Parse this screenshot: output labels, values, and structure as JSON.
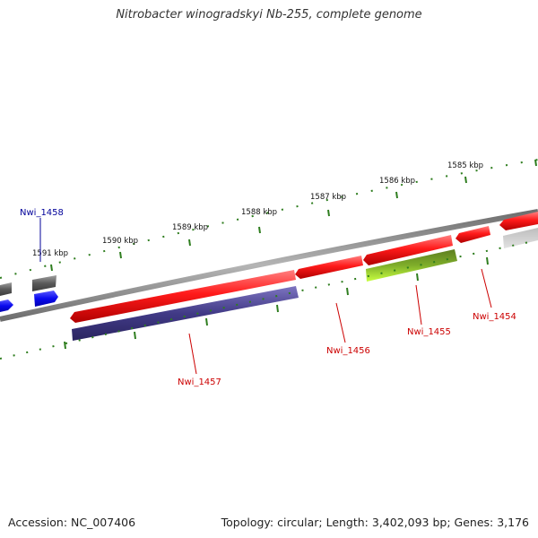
{
  "title": "Nitrobacter winogradskyi Nb-255, complete genome",
  "footer": {
    "accession": "Accession: NC_007406",
    "topology": "Topology: circular; Length: 3,402,093 bp; Genes: 3,176"
  },
  "ticks": {
    "labels": [
      "1585 kbp",
      "1586 kbp",
      "1587 kbp",
      "1588 kbp",
      "1589 kbp",
      "1590 kbp",
      "1591 kbp"
    ],
    "color": "#2e7d1e"
  },
  "genes": [
    {
      "id": "Nwi_1454",
      "color": "#cc0000"
    },
    {
      "id": "Nwi_1455",
      "color": "#cc0000"
    },
    {
      "id": "Nwi_1456",
      "color": "#cc0000"
    },
    {
      "id": "Nwi_1457",
      "color": "#cc0000"
    },
    {
      "id": "Nwi_1458",
      "color": "#000099"
    }
  ],
  "colors": {
    "backbone": "#8c8c8c",
    "forward_cds": "#ee1111",
    "reverse_cds": "#4a4090",
    "rna": "#88cc22",
    "other_forward": "#666666",
    "other_reverse": "#1010ee"
  }
}
